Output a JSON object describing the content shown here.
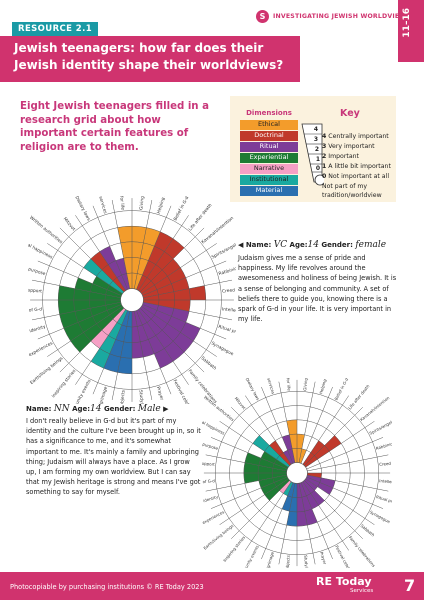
{
  "header": {
    "resource_tag": "RESOURCE 2.1",
    "series_badge": "S",
    "series_label": "INVESTIGATING JEWISH WORLDVIEWS",
    "age_range": "11–16",
    "title": "Jewish teenagers: how far does their Jewish identity shape their worldviews?"
  },
  "intro": "Eight Jewish teenagers filled in a research grid about how important certain features of religion are to them.",
  "key": {
    "dimensions_title": "Dimensions",
    "dimensions": [
      {
        "label": "Ethical",
        "color": "#f39c2b"
      },
      {
        "label": "Doctrinal",
        "color": "#c0392b"
      },
      {
        "label": "Ritual",
        "color": "#7d3c98"
      },
      {
        "label": "Experiential",
        "color": "#1e7b34"
      },
      {
        "label": "Narrative",
        "color": "#f5a0c5"
      },
      {
        "label": "Institutional",
        "color": "#1aa9a0"
      },
      {
        "label": "Material",
        "color": "#2a6fb0"
      }
    ],
    "key_title": "Key",
    "levels": [
      {
        "num": "4",
        "text": "Centrally important"
      },
      {
        "num": "3",
        "text": "Very important"
      },
      {
        "num": "2",
        "text": "Important"
      },
      {
        "num": "1",
        "text": "A little bit important"
      },
      {
        "num": "0",
        "text": "Not important at all"
      }
    ],
    "not_part": "Not part of my tradition/worldview"
  },
  "wheel_labels": [
    "Giving to charity",
    "Helping the world",
    "Belief in G-d",
    "Life after death",
    "Kavanah/intention",
    "Spirits/angels",
    "Rabbinic authorities",
    "Creed",
    "Intellectual support",
    "Ritual practice",
    "Synagogue",
    "Sabbath",
    "Family celebrations",
    "Festival celebrations",
    "Prayer",
    "Study/reading",
    "Holy objects",
    "Places of pilgrimage",
    "Community events",
    "Inspiring stories",
    "Earth/living beings",
    "Spiritual experiences",
    "Sense of identity",
    "Presence of G-d",
    "Emotional support",
    "Meaning and purpose",
    "Personal happiness",
    "Written authorities",
    "Mitzvot",
    "Dietary laws",
    "Rituals/services",
    "Rules for life"
  ],
  "people": [
    {
      "name_label": "Name:",
      "name": "VC",
      "age_label": "Age:",
      "age": "14",
      "gender_label": "Gender:",
      "gender": "female",
      "text": "Judaism gives me a sense of pride and happiness. My life revolves around the awesomeness and holiness of being Jewish. It is a sense of belonging and community. A set of beliefs there to guide you, knowing there is a spark of G-d in your life. It is very important in my life."
    },
    {
      "name_label": "Name:",
      "name": "NN",
      "age_label": "Age:",
      "age": "14",
      "gender_label": "Gender:",
      "gender": "Male",
      "text": "I don't really believe in G-d but it's part of my identity and the culture I've been brought up in, so it has a significance to me, and it's somewhat important to me. It's mainly a family and upbringing thing; Judaism will always have a place. As I grow up, I am forming my own worldview. But I can say that my Jewish heritage is strong and means I've got something to say for myself."
    }
  ],
  "wheel1_levels": [
    4,
    4,
    4,
    4,
    3,
    3,
    3,
    4,
    3,
    3,
    4,
    4,
    4,
    4,
    3,
    3,
    4,
    4,
    4,
    3,
    4,
    4,
    4,
    4,
    4,
    3,
    2,
    3,
    3,
    3,
    2,
    4
  ],
  "wheel2_levels": [
    2,
    1,
    0,
    2,
    3,
    0,
    0,
    0,
    1,
    2,
    2,
    1,
    2,
    2,
    3,
    3,
    3,
    2,
    1,
    1,
    2,
    2,
    2,
    3,
    3,
    3,
    2,
    3,
    2,
    1,
    2,
    3
  ],
  "footer": {
    "copyright": "Photocopiable by purchasing institutions © RE Today 2023",
    "logo": "RE Today",
    "logo_sub": "Services",
    "page": "7"
  }
}
